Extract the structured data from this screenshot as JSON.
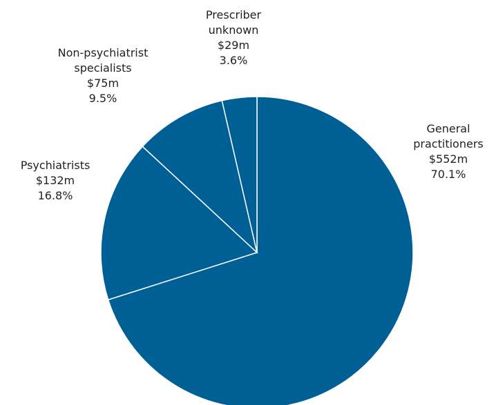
{
  "chart_data": {
    "type": "pie",
    "categories": [
      "General\npractitioners",
      "Psychiatrists",
      "Non-psychiatrist\nspecialists",
      "Prescriber\nunknown"
    ],
    "values": [
      70.1,
      16.8,
      9.5,
      3.6
    ],
    "value_labels": [
      "70.1%",
      "16.8%",
      "9.5%",
      "3.6%"
    ],
    "amounts": [
      552,
      132,
      75,
      29
    ],
    "amount_labels": [
      "$552m",
      "$132m",
      "$75m",
      "$29m"
    ],
    "color": "#006096"
  }
}
